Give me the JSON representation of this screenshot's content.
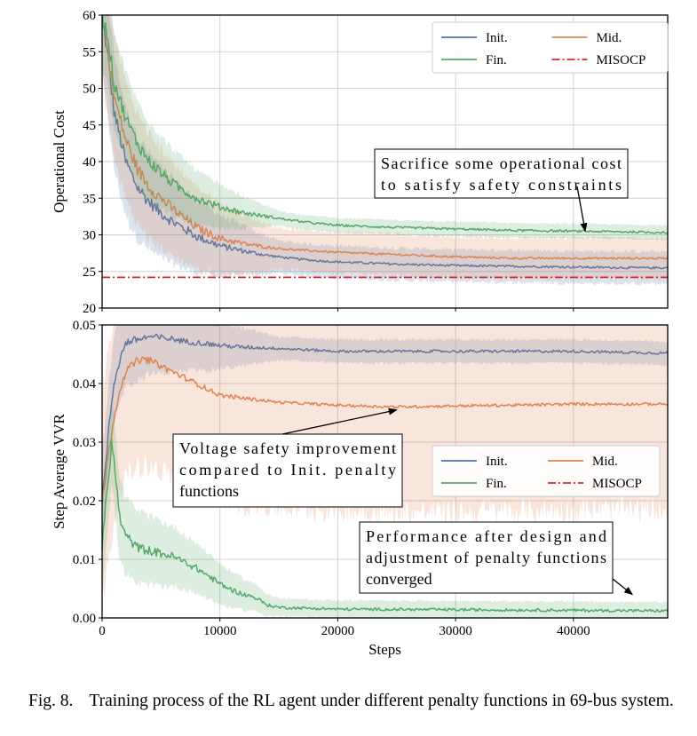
{
  "chart_data": [
    {
      "type": "line",
      "ylabel": "Operational Cost",
      "xlim": [
        0,
        48000
      ],
      "ylim": [
        20,
        60
      ],
      "x_ticks": [
        "0",
        "10000",
        "20000",
        "30000",
        "40000"
      ],
      "x_tick_values": [
        0,
        10000,
        20000,
        30000,
        40000
      ],
      "y_ticks": [
        "20",
        "25",
        "30",
        "35",
        "40",
        "45",
        "50",
        "55",
        "60"
      ],
      "y_tick_values": [
        20,
        25,
        30,
        35,
        40,
        45,
        50,
        55,
        60
      ],
      "grid": true,
      "legend_position": "top-right",
      "legend": [
        "Init.",
        "Mid.",
        "Fin.",
        "MISOCP"
      ],
      "series": [
        {
          "name": "Init.",
          "color": "#4c72b0",
          "x": [
            0,
            500,
            1000,
            2000,
            3000,
            4000,
            5000,
            6000,
            8000,
            10000,
            12000,
            14000,
            16000,
            18000,
            20000,
            25000,
            30000,
            35000,
            40000,
            45000,
            48000
          ],
          "y": [
            60,
            54,
            47,
            40,
            36.5,
            34.5,
            33,
            31.8,
            29.8,
            28.5,
            27.8,
            27.2,
            26.8,
            26.5,
            26.3,
            26,
            25.8,
            25.7,
            25.6,
            25.5,
            25.5
          ],
          "band": 2.2
        },
        {
          "name": "Mid.",
          "color": "#dd8452",
          "x": [
            0,
            500,
            1000,
            2000,
            3000,
            4000,
            5000,
            6000,
            8000,
            10000,
            12000,
            14000,
            16000,
            18000,
            20000,
            25000,
            30000,
            35000,
            40000,
            45000,
            48000
          ],
          "y": [
            60,
            55,
            49,
            43,
            39,
            36.5,
            35,
            33.5,
            31,
            29.5,
            28.8,
            28.3,
            28,
            27.8,
            27.6,
            27.3,
            27,
            26.8,
            26.8,
            26.8,
            26.8
          ],
          "band": 2.8
        },
        {
          "name": "Fin.",
          "color": "#55a868",
          "x": [
            0,
            500,
            1000,
            2000,
            3000,
            4000,
            5000,
            6000,
            8000,
            10000,
            12000,
            14000,
            16000,
            18000,
            20000,
            25000,
            30000,
            35000,
            40000,
            45000,
            48000
          ],
          "y": [
            60,
            57,
            51,
            46,
            42.5,
            40,
            38.5,
            37,
            35,
            33.8,
            33,
            32.5,
            32,
            31.6,
            31.3,
            31,
            30.8,
            30.6,
            30.5,
            30.4,
            30.3
          ],
          "band": 1.0
        },
        {
          "name": "MISOCP",
          "color": "#d62728",
          "dashed": true,
          "constant": 24.2
        }
      ],
      "annotations": [
        {
          "lines": [
            "Sacrifice some operational cost",
            "to satisfy safety constraints"
          ],
          "arrow_to": {
            "x": 41000,
            "y": 30.5
          }
        }
      ]
    },
    {
      "type": "line",
      "ylabel": "Step Average VVR",
      "xlabel": "Steps",
      "xlim": [
        0,
        48000
      ],
      "ylim": [
        0,
        0.05
      ],
      "x_ticks": [
        "0",
        "10000",
        "20000",
        "30000",
        "40000"
      ],
      "x_tick_values": [
        0,
        10000,
        20000,
        30000,
        40000
      ],
      "y_ticks": [
        "0.00",
        "0.01",
        "0.02",
        "0.03",
        "0.04",
        "0.05"
      ],
      "y_tick_values": [
        0,
        0.01,
        0.02,
        0.03,
        0.04,
        0.05
      ],
      "grid": true,
      "legend_position": "center-right",
      "legend": [
        "Init.",
        "Mid.",
        "Fin.",
        "MISOCP"
      ],
      "series": [
        {
          "name": "Init.",
          "color": "#4c72b0",
          "x": [
            0,
            300,
            600,
            1000,
            1500,
            2000,
            3000,
            4000,
            5000,
            6000,
            7000,
            8000,
            10000,
            12000,
            15000,
            20000,
            25000,
            30000,
            35000,
            40000,
            45000,
            48000
          ],
          "y": [
            0.02,
            0.026,
            0.033,
            0.04,
            0.044,
            0.047,
            0.0475,
            0.048,
            0.0478,
            0.0476,
            0.0472,
            0.047,
            0.0465,
            0.0462,
            0.046,
            0.0455,
            0.0455,
            0.0455,
            0.0455,
            0.0455,
            0.0453,
            0.0452
          ],
          "band": 0.002
        },
        {
          "name": "Mid.",
          "color": "#dd8452",
          "x": [
            0,
            300,
            600,
            1000,
            1500,
            2000,
            3000,
            4000,
            5000,
            6000,
            7000,
            8000,
            10000,
            12000,
            15000,
            20000,
            25000,
            30000,
            35000,
            40000,
            45000,
            48000
          ],
          "y": [
            0.02,
            0.024,
            0.029,
            0.034,
            0.039,
            0.042,
            0.044,
            0.044,
            0.043,
            0.042,
            0.041,
            0.04,
            0.038,
            0.0375,
            0.0368,
            0.0363,
            0.036,
            0.0362,
            0.0363,
            0.0365,
            0.0365,
            0.0365
          ],
          "band": 0.018
        },
        {
          "name": "Fin.",
          "color": "#55a868",
          "x": [
            0,
            300,
            600,
            800,
            1000,
            1500,
            2000,
            3000,
            4000,
            5000,
            6000,
            7000,
            8000,
            9000,
            10000,
            11000,
            12000,
            13000,
            14000,
            15000,
            20000,
            30000,
            40000,
            48000
          ],
          "y": [
            0.012,
            0.019,
            0.025,
            0.03,
            0.027,
            0.017,
            0.014,
            0.012,
            0.0115,
            0.011,
            0.0105,
            0.0095,
            0.0085,
            0.0072,
            0.0058,
            0.0048,
            0.004,
            0.0035,
            0.0022,
            0.0018,
            0.0015,
            0.0014,
            0.0013,
            0.0012
          ],
          "band": 0.0015
        },
        {
          "name": "MISOCP",
          "color": "#d62728",
          "dashed": true,
          "legend_only": true
        }
      ],
      "annotations": [
        {
          "lines": [
            "Voltage safety improvement",
            "compared to Init. penalty",
            "functions"
          ],
          "arrow_to": {
            "x": 25000,
            "y": 0.0355
          }
        },
        {
          "lines": [
            "Performance after design and",
            "adjustment of penalty functions",
            "converged"
          ],
          "arrow_to": {
            "x": 45000,
            "y": 0.004
          }
        }
      ]
    }
  ],
  "caption": {
    "number": "Fig. 8.",
    "text": "Training process of the RL agent under different penalty functions in 69-bus system."
  }
}
